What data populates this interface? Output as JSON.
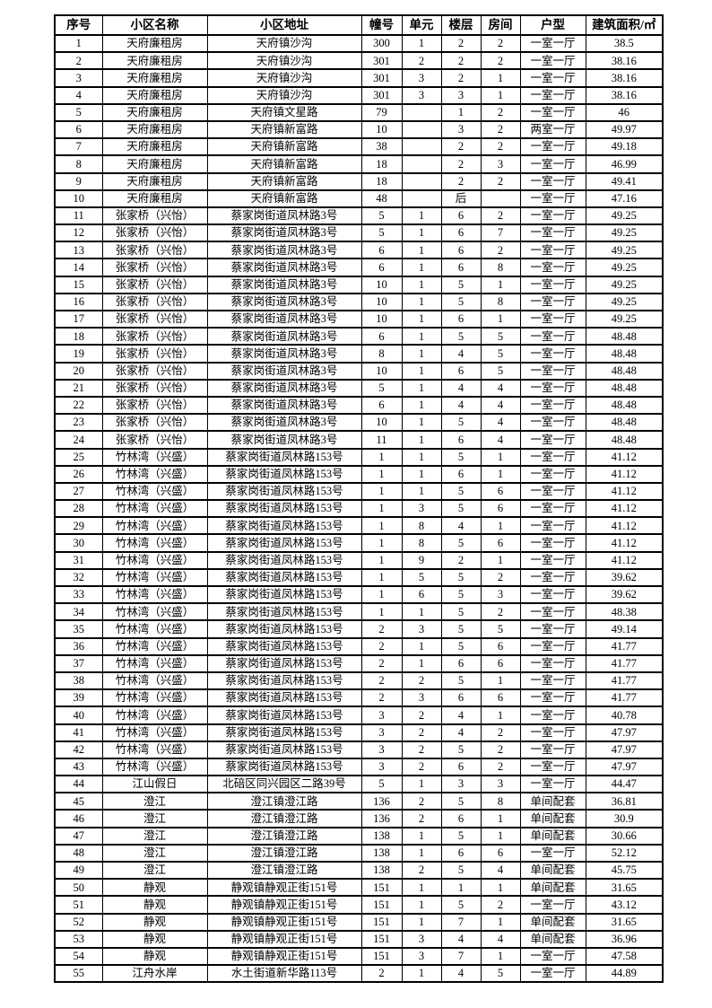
{
  "page": {
    "background_color": "#ffffff",
    "border_color": "#000000",
    "text_color": "#000000"
  },
  "table": {
    "headers": [
      "序号",
      "小区名称",
      "小区地址",
      "幢号",
      "单元",
      "楼层",
      "房间",
      "户型",
      "建筑面积/㎡"
    ],
    "rows": [
      [
        "1",
        "天府廉租房",
        "天府镇沙沟",
        "300",
        "1",
        "2",
        "2",
        "一室一厅",
        "38.5"
      ],
      [
        "2",
        "天府廉租房",
        "天府镇沙沟",
        "301",
        "2",
        "2",
        "2",
        "一室一厅",
        "38.16"
      ],
      [
        "3",
        "天府廉租房",
        "天府镇沙沟",
        "301",
        "3",
        "2",
        "1",
        "一室一厅",
        "38.16"
      ],
      [
        "4",
        "天府廉租房",
        "天府镇沙沟",
        "301",
        "3",
        "3",
        "1",
        "一室一厅",
        "38.16"
      ],
      [
        "5",
        "天府廉租房",
        "天府镇文星路",
        "79",
        "",
        "1",
        "2",
        "一室一厅",
        "46"
      ],
      [
        "6",
        "天府廉租房",
        "天府镇新富路",
        "10",
        "",
        "3",
        "2",
        "两室一厅",
        "49.97"
      ],
      [
        "7",
        "天府廉租房",
        "天府镇新富路",
        "38",
        "",
        "2",
        "2",
        "一室一厅",
        "49.18"
      ],
      [
        "8",
        "天府廉租房",
        "天府镇新富路",
        "18",
        "",
        "2",
        "3",
        "一室一厅",
        "46.99"
      ],
      [
        "9",
        "天府廉租房",
        "天府镇新富路",
        "18",
        "",
        "2",
        "2",
        "一室一厅",
        "49.41"
      ],
      [
        "10",
        "天府廉租房",
        "天府镇新富路",
        "48",
        "",
        "后",
        "",
        "一室一厅",
        "47.16"
      ],
      [
        "11",
        "张家桥（兴怡）",
        "蔡家岗街道凤林路3号",
        "5",
        "1",
        "6",
        "2",
        "一室一厅",
        "49.25"
      ],
      [
        "12",
        "张家桥（兴怡）",
        "蔡家岗街道凤林路3号",
        "5",
        "1",
        "6",
        "7",
        "一室一厅",
        "49.25"
      ],
      [
        "13",
        "张家桥（兴怡）",
        "蔡家岗街道凤林路3号",
        "6",
        "1",
        "6",
        "2",
        "一室一厅",
        "49.25"
      ],
      [
        "14",
        "张家桥（兴怡）",
        "蔡家岗街道凤林路3号",
        "6",
        "1",
        "6",
        "8",
        "一室一厅",
        "49.25"
      ],
      [
        "15",
        "张家桥（兴怡）",
        "蔡家岗街道凤林路3号",
        "10",
        "1",
        "5",
        "1",
        "一室一厅",
        "49.25"
      ],
      [
        "16",
        "张家桥（兴怡）",
        "蔡家岗街道凤林路3号",
        "10",
        "1",
        "5",
        "8",
        "一室一厅",
        "49.25"
      ],
      [
        "17",
        "张家桥（兴怡）",
        "蔡家岗街道凤林路3号",
        "10",
        "1",
        "6",
        "1",
        "一室一厅",
        "49.25"
      ],
      [
        "18",
        "张家桥（兴怡）",
        "蔡家岗街道凤林路3号",
        "6",
        "1",
        "5",
        "5",
        "一室一厅",
        "48.48"
      ],
      [
        "19",
        "张家桥（兴怡）",
        "蔡家岗街道凤林路3号",
        "8",
        "1",
        "4",
        "5",
        "一室一厅",
        "48.48"
      ],
      [
        "20",
        "张家桥（兴怡）",
        "蔡家岗街道凤林路3号",
        "10",
        "1",
        "6",
        "5",
        "一室一厅",
        "48.48"
      ],
      [
        "21",
        "张家桥（兴怡）",
        "蔡家岗街道凤林路3号",
        "5",
        "1",
        "4",
        "4",
        "一室一厅",
        "48.48"
      ],
      [
        "22",
        "张家桥（兴怡）",
        "蔡家岗街道凤林路3号",
        "6",
        "1",
        "4",
        "4",
        "一室一厅",
        "48.48"
      ],
      [
        "23",
        "张家桥（兴怡）",
        "蔡家岗街道凤林路3号",
        "10",
        "1",
        "5",
        "4",
        "一室一厅",
        "48.48"
      ],
      [
        "24",
        "张家桥（兴怡）",
        "蔡家岗街道凤林路3号",
        "11",
        "1",
        "6",
        "4",
        "一室一厅",
        "48.48"
      ],
      [
        "25",
        "竹林湾（兴盛）",
        "蔡家岗街道凤林路153号",
        "1",
        "1",
        "5",
        "1",
        "一室一厅",
        "41.12"
      ],
      [
        "26",
        "竹林湾（兴盛）",
        "蔡家岗街道凤林路153号",
        "1",
        "1",
        "6",
        "1",
        "一室一厅",
        "41.12"
      ],
      [
        "27",
        "竹林湾（兴盛）",
        "蔡家岗街道凤林路153号",
        "1",
        "1",
        "5",
        "6",
        "一室一厅",
        "41.12"
      ],
      [
        "28",
        "竹林湾（兴盛）",
        "蔡家岗街道凤林路153号",
        "1",
        "3",
        "5",
        "6",
        "一室一厅",
        "41.12"
      ],
      [
        "29",
        "竹林湾（兴盛）",
        "蔡家岗街道凤林路153号",
        "1",
        "8",
        "4",
        "1",
        "一室一厅",
        "41.12"
      ],
      [
        "30",
        "竹林湾（兴盛）",
        "蔡家岗街道凤林路153号",
        "1",
        "8",
        "5",
        "6",
        "一室一厅",
        "41.12"
      ],
      [
        "31",
        "竹林湾（兴盛）",
        "蔡家岗街道凤林路153号",
        "1",
        "9",
        "2",
        "1",
        "一室一厅",
        "41.12"
      ],
      [
        "32",
        "竹林湾（兴盛）",
        "蔡家岗街道凤林路153号",
        "1",
        "5",
        "5",
        "2",
        "一室一厅",
        "39.62"
      ],
      [
        "33",
        "竹林湾（兴盛）",
        "蔡家岗街道凤林路153号",
        "1",
        "6",
        "5",
        "3",
        "一室一厅",
        "39.62"
      ],
      [
        "34",
        "竹林湾（兴盛）",
        "蔡家岗街道凤林路153号",
        "1",
        "1",
        "5",
        "2",
        "一室一厅",
        "48.38"
      ],
      [
        "35",
        "竹林湾（兴盛）",
        "蔡家岗街道凤林路153号",
        "2",
        "3",
        "5",
        "5",
        "一室一厅",
        "49.14"
      ],
      [
        "36",
        "竹林湾（兴盛）",
        "蔡家岗街道凤林路153号",
        "2",
        "1",
        "5",
        "6",
        "一室一厅",
        "41.77"
      ],
      [
        "37",
        "竹林湾（兴盛）",
        "蔡家岗街道凤林路153号",
        "2",
        "1",
        "6",
        "6",
        "一室一厅",
        "41.77"
      ],
      [
        "38",
        "竹林湾（兴盛）",
        "蔡家岗街道凤林路153号",
        "2",
        "2",
        "5",
        "1",
        "一室一厅",
        "41.77"
      ],
      [
        "39",
        "竹林湾（兴盛）",
        "蔡家岗街道凤林路153号",
        "2",
        "3",
        "6",
        "6",
        "一室一厅",
        "41.77"
      ],
      [
        "40",
        "竹林湾（兴盛）",
        "蔡家岗街道凤林路153号",
        "3",
        "2",
        "4",
        "1",
        "一室一厅",
        "40.78"
      ],
      [
        "41",
        "竹林湾（兴盛）",
        "蔡家岗街道凤林路153号",
        "3",
        "2",
        "4",
        "2",
        "一室一厅",
        "47.97"
      ],
      [
        "42",
        "竹林湾（兴盛）",
        "蔡家岗街道凤林路153号",
        "3",
        "2",
        "5",
        "2",
        "一室一厅",
        "47.97"
      ],
      [
        "43",
        "竹林湾（兴盛）",
        "蔡家岗街道凤林路153号",
        "3",
        "2",
        "6",
        "2",
        "一室一厅",
        "47.97"
      ],
      [
        "44",
        "江山假日",
        "北碚区同兴园区二路39号",
        "5",
        "1",
        "3",
        "3",
        "一室一厅",
        "44.47"
      ],
      [
        "45",
        "澄江",
        "澄江镇澄江路",
        "136",
        "2",
        "5",
        "8",
        "单间配套",
        "36.81"
      ],
      [
        "46",
        "澄江",
        "澄江镇澄江路",
        "136",
        "2",
        "6",
        "1",
        "单间配套",
        "30.9"
      ],
      [
        "47",
        "澄江",
        "澄江镇澄江路",
        "138",
        "1",
        "5",
        "1",
        "单间配套",
        "30.66"
      ],
      [
        "48",
        "澄江",
        "澄江镇澄江路",
        "138",
        "1",
        "6",
        "6",
        "一室一厅",
        "52.12"
      ],
      [
        "49",
        "澄江",
        "澄江镇澄江路",
        "138",
        "2",
        "5",
        "4",
        "单间配套",
        "45.75"
      ],
      [
        "50",
        "静观",
        "静观镇静观正街151号",
        "151",
        "1",
        "1",
        "1",
        "单间配套",
        "31.65"
      ],
      [
        "51",
        "静观",
        "静观镇静观正街151号",
        "151",
        "1",
        "5",
        "2",
        "一室一厅",
        "43.12"
      ],
      [
        "52",
        "静观",
        "静观镇静观正街151号",
        "151",
        "1",
        "7",
        "1",
        "单间配套",
        "31.65"
      ],
      [
        "53",
        "静观",
        "静观镇静观正街151号",
        "151",
        "3",
        "4",
        "4",
        "单间配套",
        "36.96"
      ],
      [
        "54",
        "静观",
        "静观镇静观正街151号",
        "151",
        "3",
        "7",
        "1",
        "一室一厅",
        "47.58"
      ],
      [
        "55",
        "江舟水岸",
        "水土街道新华路113号",
        "2",
        "1",
        "4",
        "5",
        "一室一厅",
        "44.89"
      ]
    ]
  }
}
